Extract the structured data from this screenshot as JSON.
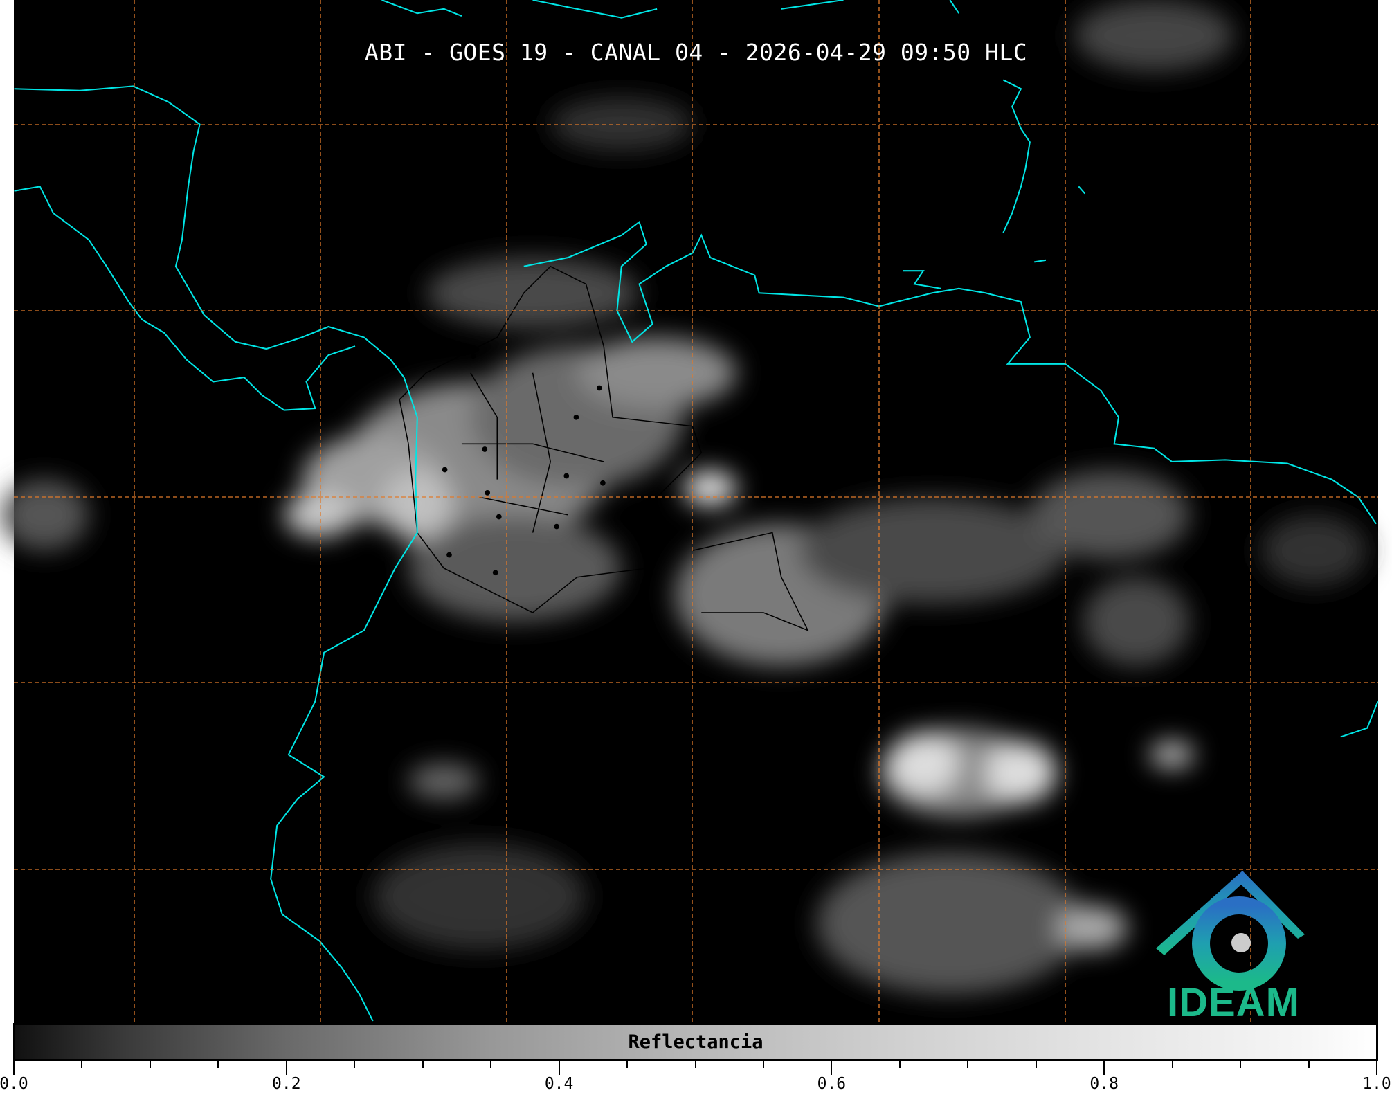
{
  "title": "ABI - GOES 19 - CANAL 04 - 2026-04-29 09:50 HLC",
  "colorbar": {
    "label": "Reflectancia",
    "range": [
      0.0,
      1.0
    ],
    "colormap": "greys (black to white)",
    "major_ticks": [
      "0.0",
      "0.2",
      "0.4",
      "0.6",
      "0.8",
      "1.0"
    ],
    "minor_tick_step": 0.05
  },
  "logo": {
    "text": "IDEAM",
    "colors": [
      "#2a6fc4",
      "#1cb98a"
    ]
  },
  "colors": {
    "coastline": "#00e5e5",
    "graticule": "#e07a2a",
    "borders": "#000000",
    "background": "#000000"
  }
}
